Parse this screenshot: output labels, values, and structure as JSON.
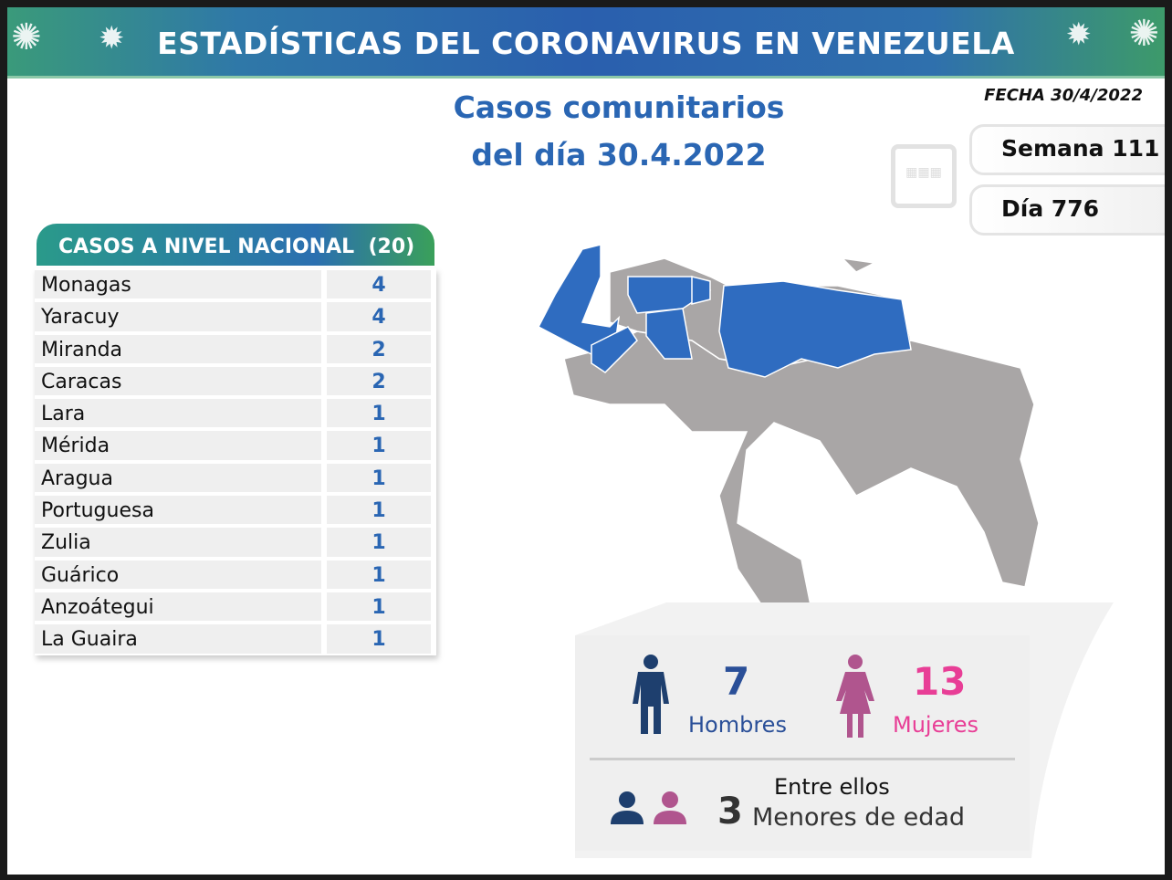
{
  "banner": {
    "title": "ESTADÍSTICAS DEL CORONAVIRUS EN VENEZUELA"
  },
  "header": {
    "title_line1": "Casos comunitarios",
    "title_line2": "del día 30.4.2022",
    "fecha": "FECHA 30/4/2022",
    "semana": "Semana 111",
    "dia": "Día 776"
  },
  "table": {
    "title": "CASOS A NIVEL NACIONAL",
    "total": "(20)",
    "rows": [
      {
        "name": "Monagas",
        "value": "4"
      },
      {
        "name": "Yaracuy",
        "value": "4"
      },
      {
        "name": "Miranda",
        "value": "2"
      },
      {
        "name": "Caracas",
        "value": "2"
      },
      {
        "name": "Lara",
        "value": "1"
      },
      {
        "name": "Mérida",
        "value": "1"
      },
      {
        "name": "Aragua",
        "value": "1"
      },
      {
        "name": "Portuguesa",
        "value": "1"
      },
      {
        "name": "Zulia",
        "value": "1"
      },
      {
        "name": "Guárico",
        "value": "1"
      },
      {
        "name": "Anzoátegui",
        "value": "1"
      },
      {
        "name": "La Guaira",
        "value": "1"
      }
    ]
  },
  "gender": {
    "men_count": "7",
    "men_label": "Hombres",
    "women_count": "13",
    "women_label": "Mujeres",
    "between_label": "Entre ellos",
    "minors_count": "3",
    "minors_label": "Menores de edad"
  },
  "colors": {
    "blue": "#2a66b3",
    "men": "#1e3f6e",
    "women": "#b0558e",
    "pink": "#e83e96",
    "map_grey": "#a9a6a6",
    "map_blue": "#2f6cc0"
  }
}
